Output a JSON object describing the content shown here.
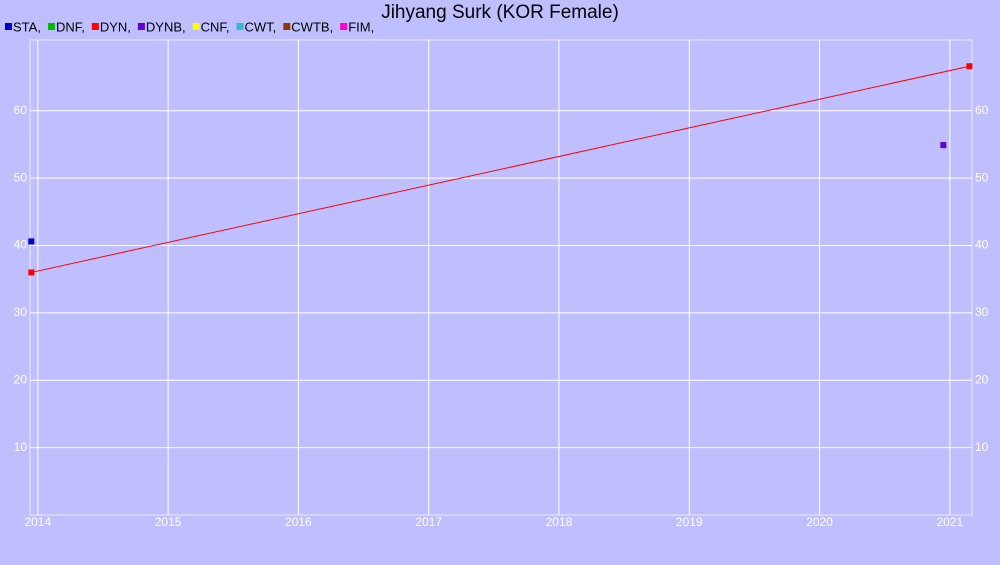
{
  "chart_data": {
    "type": "line",
    "title": "Jihyang Surk (KOR Female)",
    "series": [
      {
        "name": "STA,",
        "color": "#0000cc",
        "x": [
          2013.95
        ],
        "values": [
          40.6
        ]
      },
      {
        "name": "DNF,",
        "color": "#00bb00",
        "x": [],
        "values": []
      },
      {
        "name": "DYN,",
        "color": "#ff0000",
        "x": [
          2013.95,
          2021.15
        ],
        "values": [
          36.0,
          66.6
        ]
      },
      {
        "name": "DYNB,",
        "color": "#6600cc",
        "x": [
          2020.95
        ],
        "values": [
          54.9
        ]
      },
      {
        "name": "CNF,",
        "color": "#ffff00",
        "x": [],
        "values": []
      },
      {
        "name": "CWT,",
        "color": "#33bbcc",
        "x": [],
        "values": []
      },
      {
        "name": "CWTB,",
        "color": "#993300",
        "x": [],
        "values": []
      },
      {
        "name": "FIM,",
        "color": "#ff00cc",
        "x": [],
        "values": []
      }
    ],
    "xlim": [
      2013.94,
      2021.17
    ],
    "xticks": [
      2014,
      2015,
      2016,
      2017,
      2018,
      2019,
      2020,
      2021
    ],
    "ylim": [
      0,
      70.5
    ],
    "yticks": [
      10,
      20,
      30,
      40,
      50,
      60
    ],
    "grid": true
  }
}
